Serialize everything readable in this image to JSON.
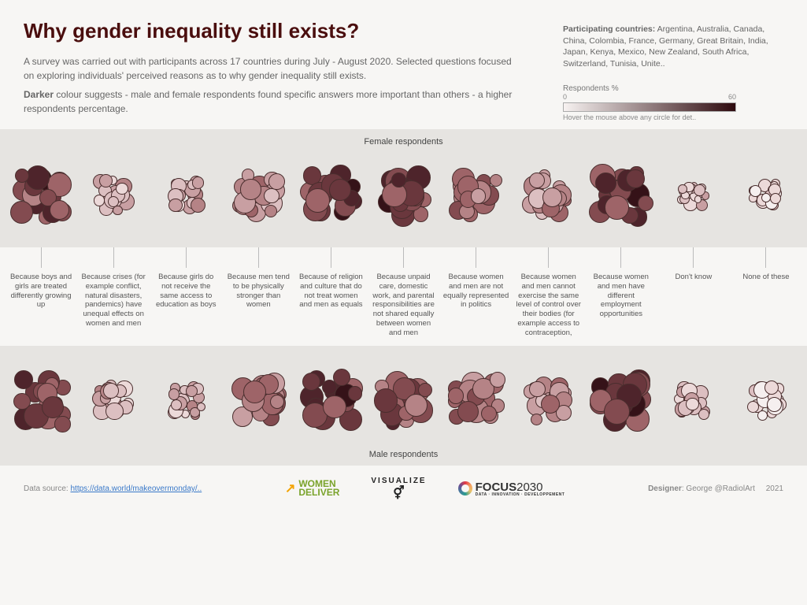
{
  "title": "Why gender inequality still exists?",
  "title_color": "#4a0e0e",
  "intro1": "A survey was carried out with participants across 17 countries during July - August 2020. Selected questions focused on exploring individuals' perceived reasons as to why gender inequality still exists.",
  "intro2_prefix": "Darker",
  "intro2_rest": " colour suggests - male and female respondents found specific answers more important than others - a higher respondents percentage.",
  "countries_label": "Participating countries:",
  "countries": " Argentina, Australia, Canada, China, Colombia, France, Germany, Great Britain, India, Japan, Kenya, Mexico, New Zealand, South Africa, Switzerland, Tunisia, Unite..",
  "legend": {
    "title": "Respondents %",
    "min": "0",
    "max": "60",
    "hint": "Hover the mouse above any circle for det..",
    "gradient_from": "#f7f2f1",
    "gradient_to": "#2e0a0e"
  },
  "section_labels": {
    "female": "Female respondents",
    "male": "Male respondents"
  },
  "categories": [
    "Because boys and girls are treated differently growing up",
    "Because crises (for example conflict, natural disasters, pandemics) have unequal effects on women and men",
    "Because girls do not receive the same access to education as boys",
    "Because men tend to be physically stronger than women",
    "Because of religion and culture that do not treat women and men as equals",
    "Because unpaid care, domestic work, and parental responsibilities are not shared equally between women and men",
    "Because women and men are not equally represented in politics",
    "Because women and men cannot exercise the same level of control over their bodies (for example access to contraception,",
    "Because women and men have different employment opportunities",
    "Don't know",
    "None of these"
  ],
  "palette": {
    "scale": [
      "#f5efef",
      "#ecd9d9",
      "#dcbfc1",
      "#c89fa2",
      "#b58386",
      "#9e6468",
      "#834b50",
      "#6a373d",
      "#4e242b",
      "#351218"
    ],
    "circle_stroke": "#4a2e2e"
  },
  "circle_count_per_cluster": 17,
  "clusters": {
    "female": [
      {
        "size": 80,
        "shades": [
          7,
          8,
          6,
          9,
          5,
          7,
          6,
          8,
          4,
          7,
          6,
          5,
          7,
          8,
          6,
          7,
          5
        ]
      },
      {
        "size": 55,
        "shades": [
          2,
          3,
          1,
          4,
          2,
          3,
          1,
          2,
          3,
          2,
          1,
          3,
          2,
          3,
          2,
          1,
          2
        ]
      },
      {
        "size": 50,
        "shades": [
          3,
          2,
          4,
          1,
          3,
          2,
          3,
          2,
          1,
          3,
          2,
          3,
          2,
          4,
          3,
          2,
          3
        ]
      },
      {
        "size": 70,
        "shades": [
          3,
          4,
          3,
          5,
          2,
          4,
          3,
          4,
          3,
          5,
          3,
          4,
          2,
          3,
          4,
          3,
          4
        ]
      },
      {
        "size": 82,
        "shades": [
          8,
          7,
          9,
          6,
          8,
          5,
          7,
          8,
          6,
          9,
          7,
          8,
          6,
          7,
          5,
          8,
          7
        ]
      },
      {
        "size": 82,
        "shades": [
          6,
          8,
          5,
          7,
          9,
          6,
          8,
          7,
          5,
          8,
          6,
          7,
          8,
          6,
          7,
          5,
          8
        ]
      },
      {
        "size": 72,
        "shades": [
          5,
          4,
          6,
          3,
          5,
          4,
          6,
          5,
          4,
          6,
          5,
          4,
          5,
          6,
          4,
          5,
          3
        ]
      },
      {
        "size": 68,
        "shades": [
          3,
          4,
          2,
          5,
          3,
          4,
          3,
          5,
          4,
          3,
          2,
          4,
          3,
          4,
          3,
          5,
          3
        ]
      },
      {
        "size": 82,
        "shades": [
          7,
          8,
          6,
          9,
          5,
          8,
          7,
          6,
          8,
          9,
          7,
          6,
          8,
          5,
          7,
          8,
          6
        ]
      },
      {
        "size": 42,
        "shades": [
          1,
          2,
          1,
          3,
          1,
          2,
          1,
          2,
          1,
          3,
          1,
          2,
          1,
          2,
          1,
          1,
          2
        ]
      },
      {
        "size": 44,
        "shades": [
          1,
          0,
          1,
          2,
          0,
          1,
          0,
          1,
          0,
          2,
          1,
          0,
          1,
          0,
          1,
          1,
          0
        ]
      }
    ],
    "male": [
      {
        "size": 80,
        "shades": [
          6,
          7,
          5,
          8,
          6,
          7,
          5,
          8,
          6,
          7,
          5,
          6,
          7,
          8,
          6,
          5,
          7
        ]
      },
      {
        "size": 55,
        "shades": [
          2,
          3,
          1,
          4,
          2,
          3,
          1,
          2,
          3,
          2,
          1,
          3,
          2,
          3,
          2,
          4,
          2
        ]
      },
      {
        "size": 50,
        "shades": [
          3,
          2,
          4,
          1,
          3,
          2,
          3,
          2,
          1,
          3,
          2,
          3,
          2,
          4,
          3,
          2,
          3
        ]
      },
      {
        "size": 74,
        "shades": [
          4,
          5,
          3,
          6,
          4,
          5,
          3,
          5,
          4,
          6,
          4,
          5,
          3,
          4,
          5,
          4,
          5
        ]
      },
      {
        "size": 82,
        "shades": [
          8,
          7,
          9,
          6,
          8,
          5,
          7,
          8,
          6,
          9,
          7,
          8,
          6,
          7,
          5,
          8,
          7
        ]
      },
      {
        "size": 78,
        "shades": [
          5,
          7,
          4,
          6,
          8,
          5,
          7,
          6,
          4,
          7,
          5,
          6,
          7,
          5,
          6,
          4,
          7
        ]
      },
      {
        "size": 76,
        "shades": [
          5,
          4,
          6,
          3,
          5,
          4,
          6,
          5,
          4,
          6,
          5,
          4,
          5,
          6,
          4,
          5,
          3
        ]
      },
      {
        "size": 64,
        "shades": [
          3,
          4,
          2,
          5,
          3,
          4,
          3,
          5,
          4,
          3,
          2,
          4,
          3,
          4,
          3,
          5,
          3
        ]
      },
      {
        "size": 82,
        "shades": [
          7,
          8,
          6,
          9,
          5,
          8,
          7,
          6,
          8,
          9,
          7,
          6,
          8,
          5,
          7,
          8,
          6
        ]
      },
      {
        "size": 50,
        "shades": [
          2,
          3,
          1,
          4,
          2,
          3,
          1,
          2,
          3,
          2,
          1,
          3,
          2,
          3,
          2,
          1,
          2
        ]
      },
      {
        "size": 54,
        "shades": [
          1,
          0,
          1,
          2,
          0,
          1,
          0,
          1,
          0,
          2,
          1,
          0,
          1,
          0,
          1,
          1,
          0
        ]
      }
    ]
  },
  "footer": {
    "source_label": "Data source: ",
    "source_link": "https://data.world/makeovermonday/..",
    "logo1a": "WOMEN",
    "logo1b": "DELIVER",
    "logo2": "VISUALIZE",
    "logo3_a": "FOCUS",
    "logo3_b": "2030",
    "logo3_sub": "DATA · INNOVATION · DEVELOPPEMENT",
    "designer_label": "Designer",
    "designer": ": George @RadiolArt",
    "year": "2021"
  }
}
